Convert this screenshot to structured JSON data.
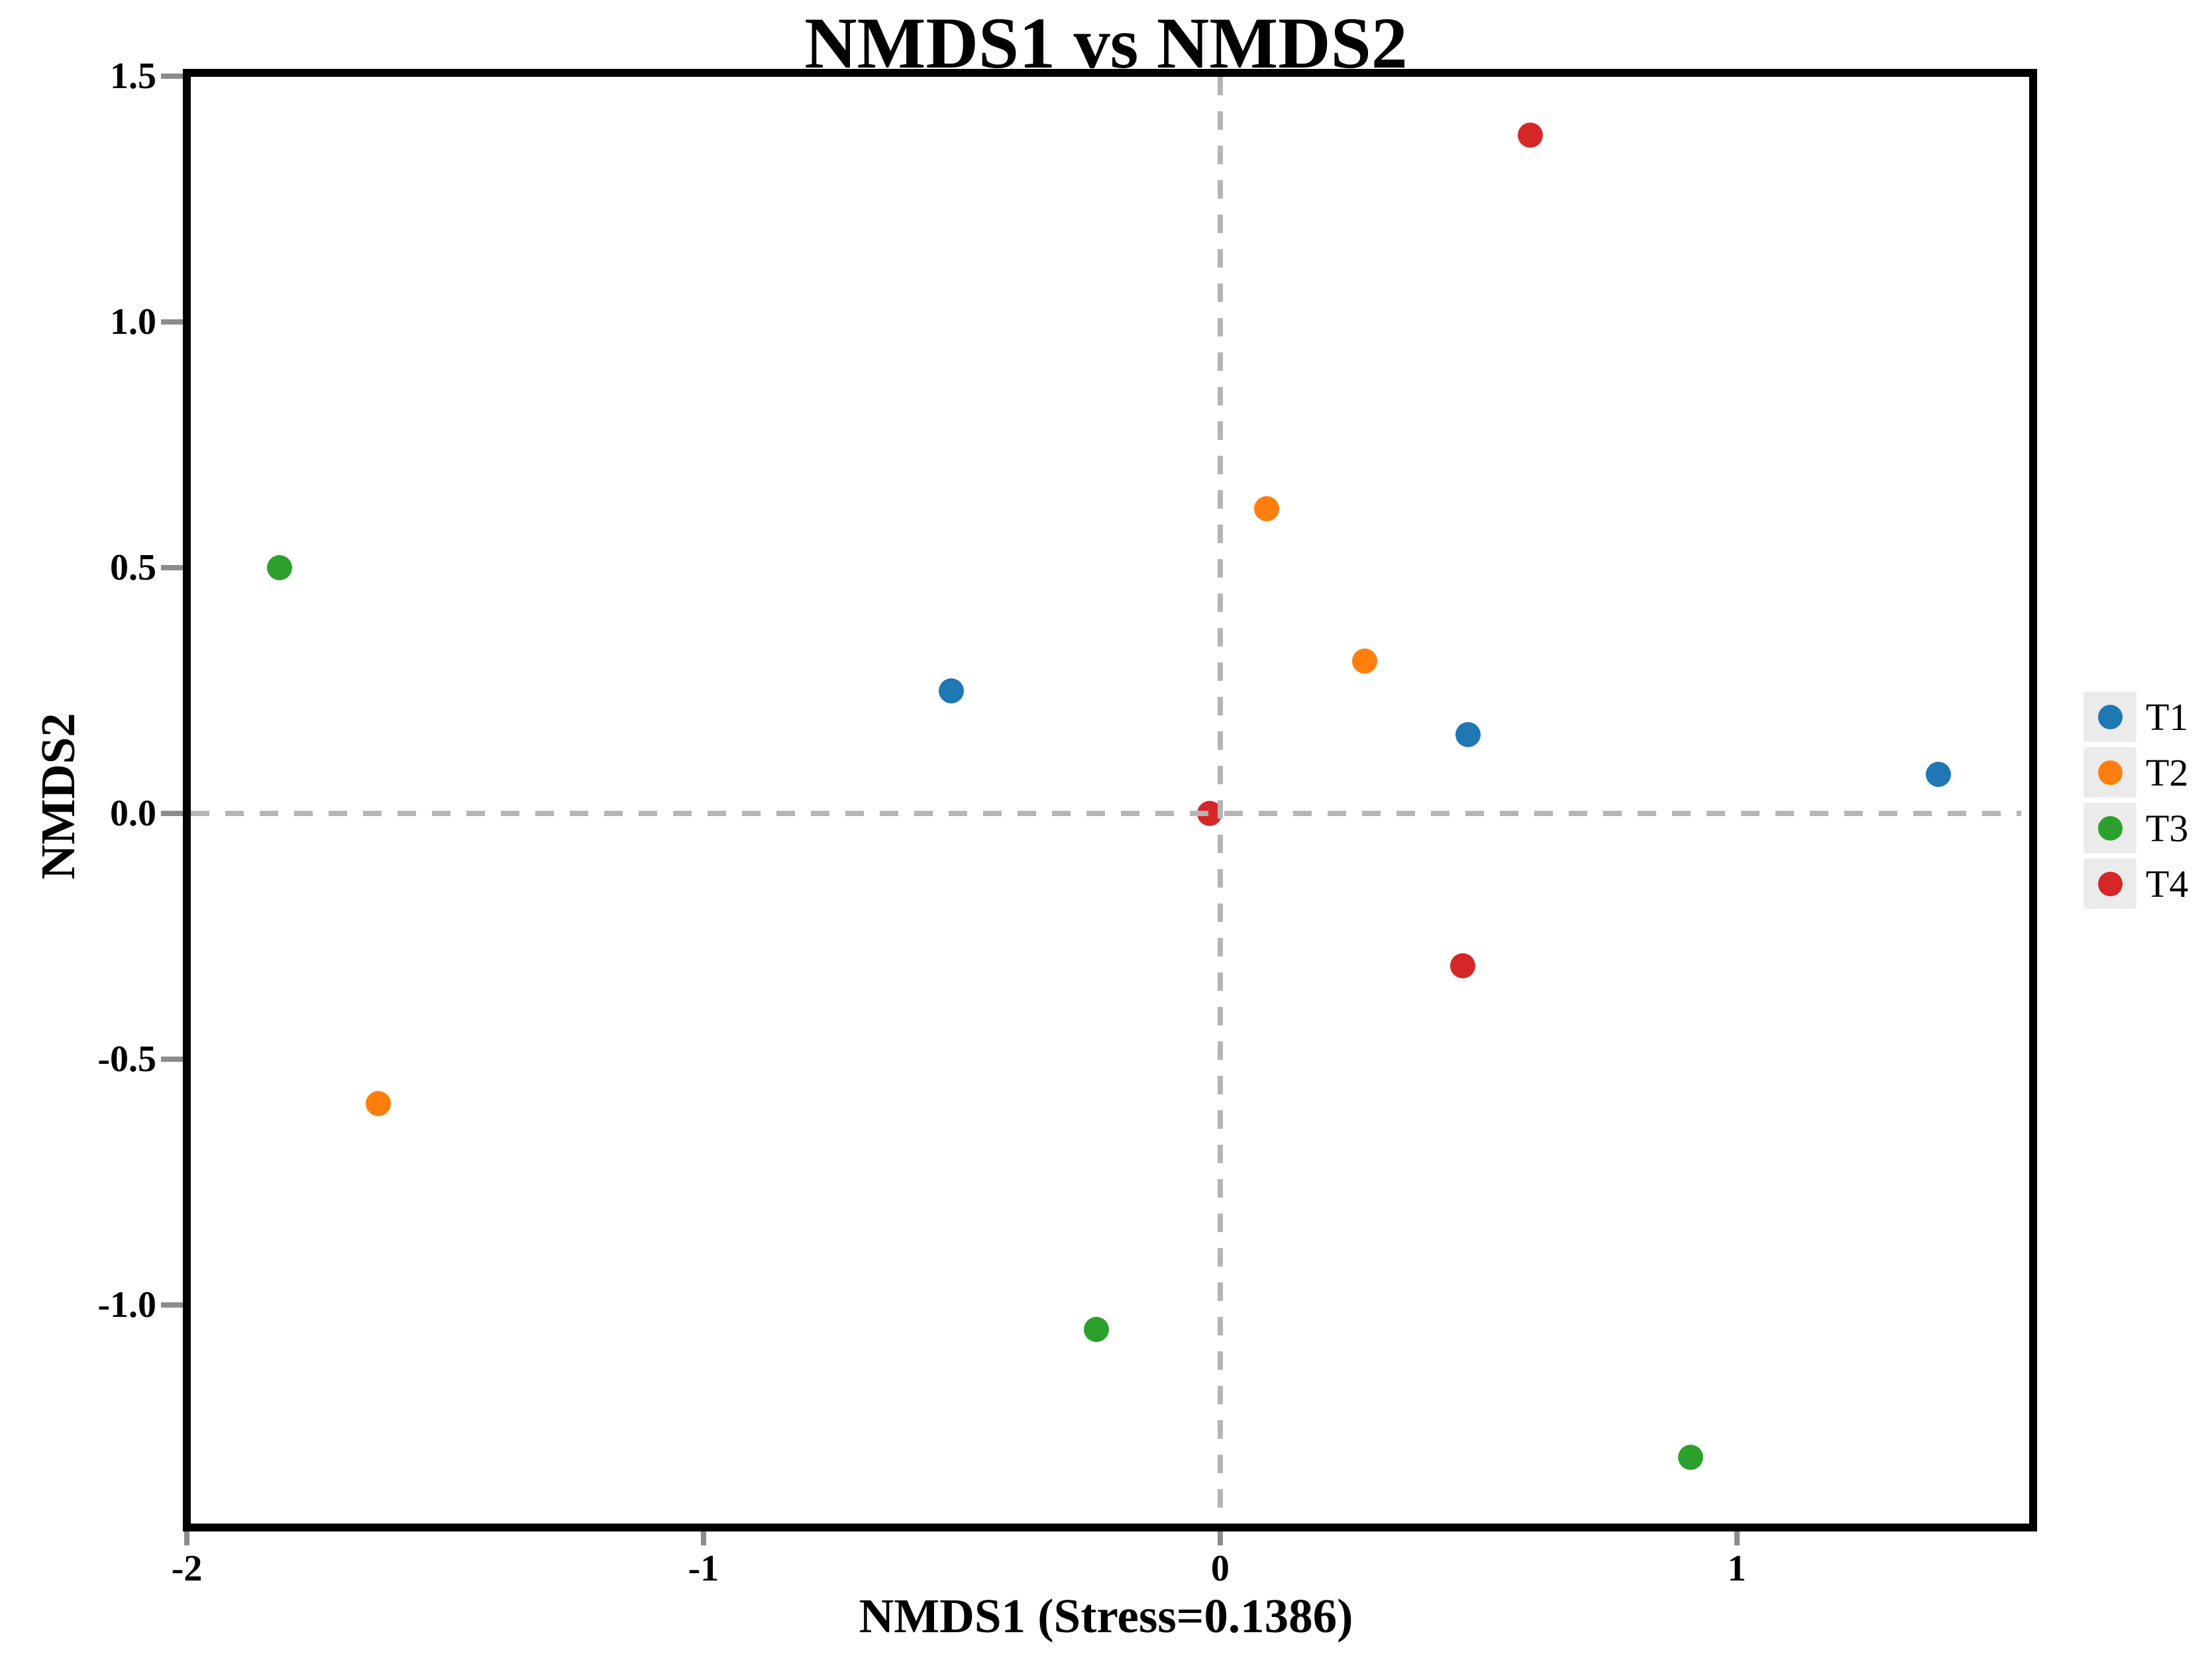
{
  "figure": {
    "title": "NMDS1 vs NMDS2",
    "xlabel": "NMDS1 (Stress=0.1386)",
    "ylabel": "NMDS2"
  },
  "chart_data": {
    "type": "scatter",
    "title": "NMDS1 vs NMDS2",
    "xlabel": "NMDS1 (Stress=0.1386)",
    "ylabel": "NMDS2",
    "stress_value": "0.1386",
    "xlim": [
      -2.0,
      1.558
    ],
    "ylim": [
      -1.437,
      1.507
    ],
    "x_ticks": [
      {
        "value": -2,
        "label": "-2"
      },
      {
        "value": -1,
        "label": "-1"
      },
      {
        "value": 0,
        "label": "0"
      },
      {
        "value": 1,
        "label": "1"
      }
    ],
    "y_ticks": [
      {
        "value": 1.5,
        "label": "1.5"
      },
      {
        "value": 1.0,
        "label": "1.0"
      },
      {
        "value": 0.5,
        "label": "0.5"
      },
      {
        "value": 0.0,
        "label": "0.0"
      },
      {
        "value": -0.5,
        "label": "-0.5"
      },
      {
        "value": -1.0,
        "label": "-1.0"
      }
    ],
    "grid": false,
    "zero_lines": {
      "at_x": 0,
      "at_y": 0,
      "style": "dashed",
      "color": "#b5b5b5"
    },
    "legend_position": "center-right-outside",
    "series": [
      {
        "name": "T1",
        "color": "#1f77b4",
        "points": [
          [
            -0.52,
            0.25
          ],
          [
            0.48,
            0.16
          ],
          [
            1.39,
            0.08
          ]
        ]
      },
      {
        "name": "T2",
        "color": "#ff7f0e",
        "points": [
          [
            0.09,
            0.62
          ],
          [
            0.28,
            0.31
          ],
          [
            -1.63,
            -0.59
          ]
        ]
      },
      {
        "name": "T3",
        "color": "#2ca02c",
        "points": [
          [
            -1.82,
            0.5
          ],
          [
            -0.24,
            -1.05
          ],
          [
            0.91,
            -1.31
          ]
        ]
      },
      {
        "name": "T4",
        "color": "#d62728",
        "points": [
          [
            0.6,
            1.38
          ],
          [
            -0.02,
            0.0
          ],
          [
            0.47,
            -0.31
          ]
        ]
      }
    ],
    "style_colors": {
      "spine": "#000000",
      "tick_mark": "#8c8c8c",
      "text": "#000000",
      "background": "#ffffff",
      "legend_swatch_bg": "#ebebeb"
    }
  }
}
